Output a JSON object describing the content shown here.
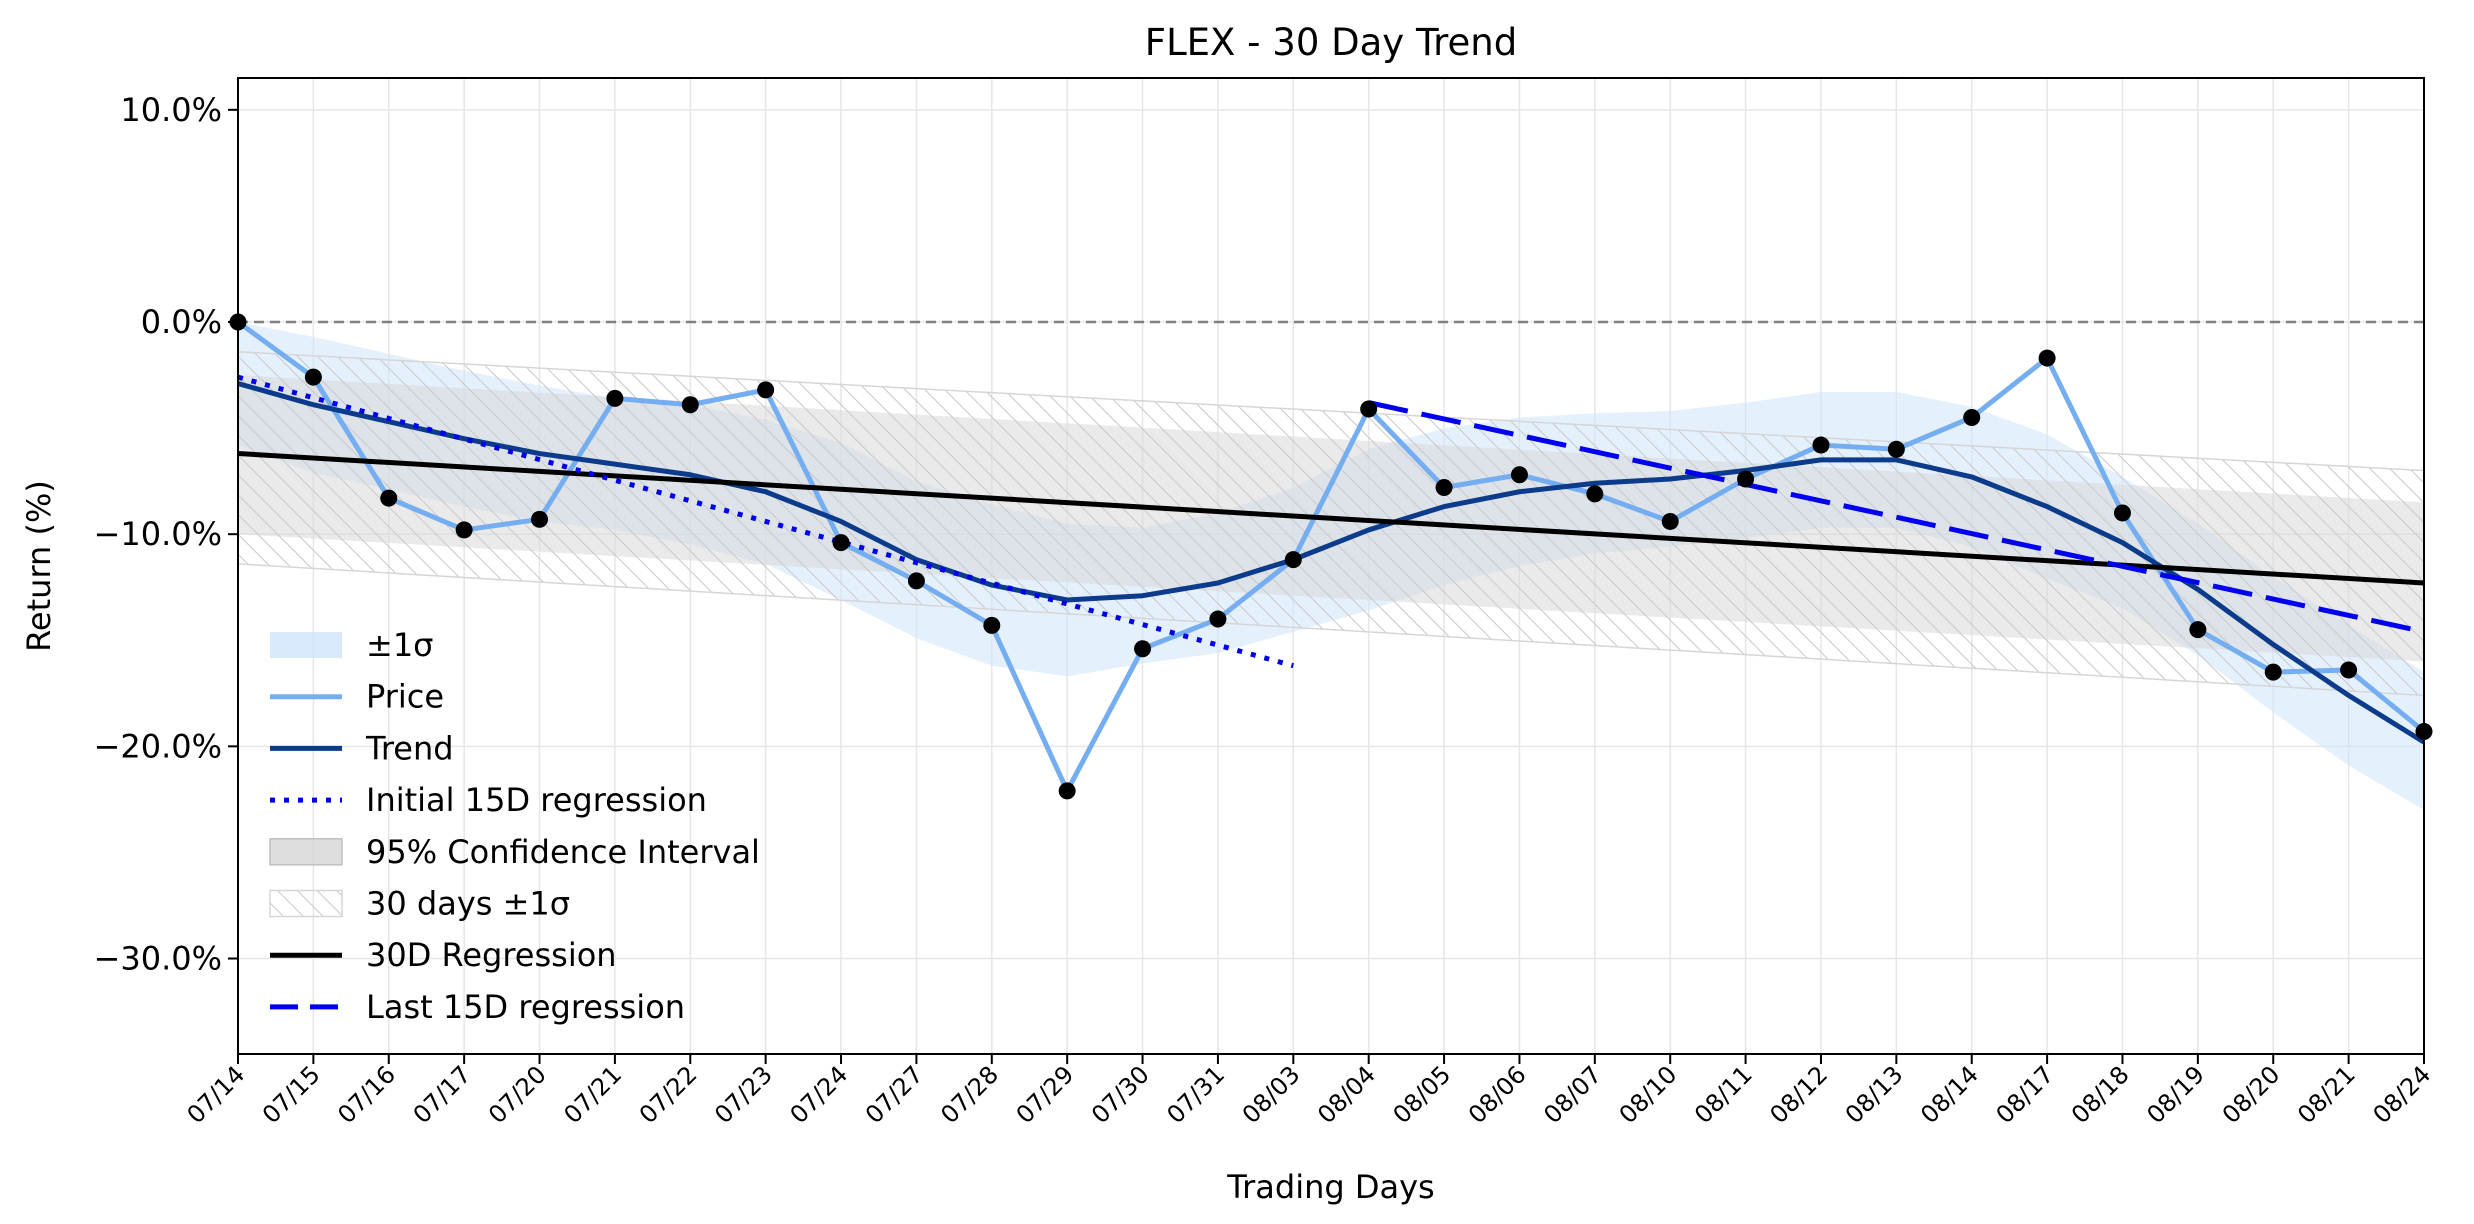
{
  "chart_data": {
    "type": "line",
    "title": "FLEX - 30 Day Trend",
    "xlabel": "Trading Days",
    "ylabel": "Return (%)",
    "ylim": [
      -34.5,
      11.5
    ],
    "yticks": [
      10,
      0,
      -10,
      -20,
      -30
    ],
    "ytick_labels": [
      "10.0%",
      "0.0%",
      "−10.0%",
      "−20.0%",
      "−30.0%"
    ],
    "grid": true,
    "legend_position": "lower-left",
    "categories": [
      "07/14",
      "07/15",
      "07/16",
      "07/17",
      "07/20",
      "07/21",
      "07/22",
      "07/23",
      "07/24",
      "07/27",
      "07/28",
      "07/29",
      "07/30",
      "07/31",
      "08/03",
      "08/04",
      "08/05",
      "08/06",
      "08/07",
      "08/10",
      "08/11",
      "08/12",
      "08/13",
      "08/14",
      "08/17",
      "08/18",
      "08/19",
      "08/20",
      "08/21",
      "08/24"
    ],
    "series": [
      {
        "name": "Price",
        "color": "#74aef0",
        "values": [
          0.0,
          -2.6,
          -8.3,
          -9.8,
          -9.3,
          -3.6,
          -3.9,
          -3.2,
          -10.4,
          -12.2,
          -14.3,
          -22.1,
          -15.4,
          -14.0,
          -11.2,
          -4.1,
          -7.8,
          -7.2,
          -8.1,
          -9.4,
          -7.4,
          -5.8,
          -6.0,
          -4.5,
          -1.7,
          -9.0,
          -14.5,
          -16.5,
          -16.4,
          -19.3
        ]
      },
      {
        "name": "Trend",
        "color": "#0b3b8a",
        "values": [
          -2.9,
          -3.9,
          -4.7,
          -5.5,
          -6.2,
          -6.7,
          -7.2,
          -8.0,
          -9.4,
          -11.2,
          -12.4,
          -13.1,
          -12.9,
          -12.3,
          -11.2,
          -9.8,
          -8.7,
          -8.0,
          -7.6,
          -7.4,
          -7.0,
          -6.5,
          -6.5,
          -7.3,
          -8.7,
          -10.4,
          -12.6,
          -15.2,
          -17.6,
          -19.8
        ]
      },
      {
        "name": "Initial 15D regression",
        "color": "#0000ee",
        "x_range": [
          "07/14",
          "08/03"
        ],
        "values_at_ends": [
          -2.6,
          -16.2
        ]
      },
      {
        "name": "30D Regression",
        "color": "#000000",
        "x_range": [
          "07/14",
          "08/24"
        ],
        "values_at_ends": [
          -6.2,
          -12.3
        ]
      },
      {
        "name": "Last 15D regression",
        "color": "#0000ee",
        "x_range": [
          "08/04",
          "08/24"
        ],
        "values_at_ends": [
          -3.8,
          -14.6
        ]
      }
    ],
    "bands": [
      {
        "name": "±1σ",
        "color": "#cfe3fb",
        "upper": [
          0.0,
          -0.7,
          -1.5,
          -2.3,
          -3.0,
          -3.6,
          -3.9,
          -4.6,
          -5.7,
          -7.5,
          -8.6,
          -9.5,
          -9.7,
          -9.0,
          -7.8,
          -6.0,
          -5.0,
          -4.5,
          -4.3,
          -4.2,
          -3.8,
          -3.3,
          -3.3,
          -4.0,
          -5.3,
          -7.3,
          -9.5,
          -12.0,
          -14.3,
          -16.5
        ],
        "lower": [
          -5.8,
          -7.1,
          -7.9,
          -8.7,
          -9.4,
          -9.8,
          -10.5,
          -11.4,
          -13.1,
          -14.9,
          -16.2,
          -16.7,
          -16.1,
          -15.6,
          -14.6,
          -13.6,
          -12.4,
          -11.5,
          -10.9,
          -10.6,
          -10.2,
          -9.7,
          -9.7,
          -10.6,
          -12.1,
          -13.5,
          -15.7,
          -18.4,
          -20.9,
          -23.0
        ]
      },
      {
        "name": "95% Confidence Interval",
        "color": "#d9d9d9",
        "upper_ends": [
          -2.5,
          -8.5
        ],
        "lower_ends": [
          -10.0,
          -16.0
        ]
      },
      {
        "name": "30 days ±1σ",
        "color": "#d0d0d0",
        "upper_ends": [
          -1.4,
          -7.0
        ],
        "lower_ends": [
          -11.4,
          -17.6
        ]
      }
    ],
    "reference_line": {
      "y": 0,
      "color": "#808080",
      "style": "dashed"
    },
    "legend": [
      "±1σ",
      "Price",
      "Trend",
      "Initial 15D regression",
      "95% Confidence Interval",
      "30 days ±1σ",
      "30D Regression",
      "Last 15D regression"
    ]
  }
}
